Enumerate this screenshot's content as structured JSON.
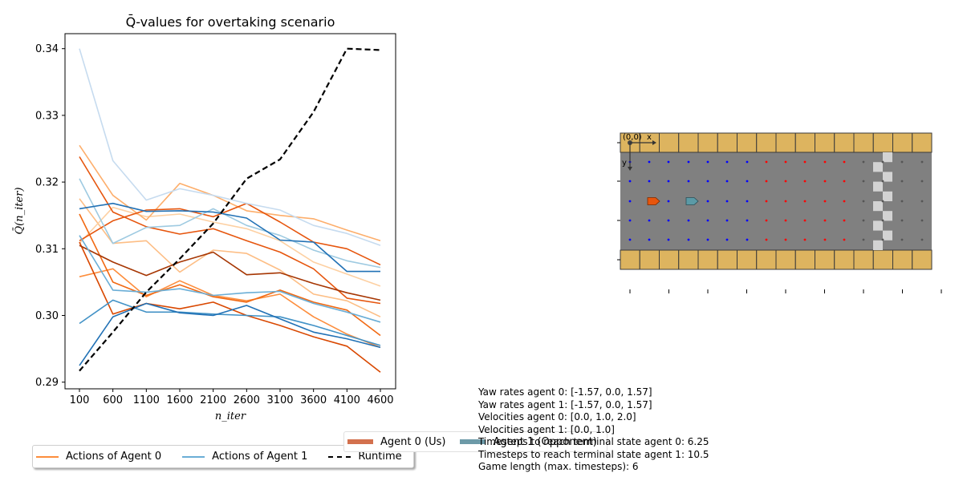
{
  "chart_data": [
    {
      "type": "line",
      "title": "Q̄-values for overtaking scenario",
      "xlabel": "n_iter",
      "ylabel": "Q̄(n_iter)",
      "x": [
        100,
        600,
        1100,
        1600,
        2100,
        2600,
        3100,
        3600,
        4100,
        4600
      ],
      "ylim": [
        0.289,
        0.3425
      ],
      "yticks": [
        0.29,
        0.3,
        0.31,
        0.32,
        0.33,
        0.34
      ],
      "grid": false,
      "series": [
        {
          "group": "agent0",
          "color": "#fdbe85",
          "values": [
            0.3175,
            0.3108,
            0.3112,
            0.3065,
            0.3098,
            0.3093,
            0.3068,
            0.3032,
            0.3022,
            0.2998
          ]
        },
        {
          "group": "agent0",
          "color": "#fdd0a2",
          "values": [
            0.3108,
            0.3162,
            0.3148,
            0.3152,
            0.314,
            0.313,
            0.3112,
            0.308,
            0.3062,
            0.3044
          ]
        },
        {
          "group": "agent0",
          "color": "#fdae6b",
          "values": [
            0.3255,
            0.318,
            0.3143,
            0.3198,
            0.318,
            0.3157,
            0.315,
            0.3145,
            0.3128,
            0.3112
          ]
        },
        {
          "group": "agent0",
          "color": "#fd8d3c",
          "values": [
            0.3058,
            0.307,
            0.3028,
            0.3052,
            0.303,
            0.3022,
            0.3032,
            0.2998,
            0.2972,
            0.2952
          ]
        },
        {
          "group": "agent0",
          "color": "#f16913",
          "values": [
            0.3152,
            0.305,
            0.303,
            0.3046,
            0.3028,
            0.302,
            0.3038,
            0.302,
            0.3008,
            0.297
          ]
        },
        {
          "group": "agent0",
          "color": "#e6550d",
          "values": [
            0.3238,
            0.3155,
            0.3133,
            0.3122,
            0.313,
            0.3112,
            0.3095,
            0.307,
            0.3026,
            0.3018
          ]
        },
        {
          "group": "agent0",
          "color": "#d94801",
          "values": [
            0.311,
            0.3002,
            0.3018,
            0.301,
            0.302,
            0.3,
            0.2985,
            0.2968,
            0.2954,
            0.2915
          ]
        },
        {
          "group": "agent0",
          "color": "#e6550d",
          "values": [
            0.3112,
            0.3142,
            0.3158,
            0.316,
            0.3148,
            0.3168,
            0.314,
            0.311,
            0.31,
            0.3076
          ]
        },
        {
          "group": "agent0",
          "color": "#a63603",
          "values": [
            0.3105,
            0.308,
            0.306,
            0.308,
            0.3095,
            0.3061,
            0.3064,
            0.3048,
            0.3034,
            0.3023
          ]
        },
        {
          "group": "agent1",
          "color": "#c6dbef",
          "values": [
            0.34,
            0.3232,
            0.3173,
            0.319,
            0.318,
            0.3168,
            0.3158,
            0.3135,
            0.3123,
            0.3105
          ]
        },
        {
          "group": "agent1",
          "color": "#9ecae1",
          "values": [
            0.3205,
            0.3108,
            0.3132,
            0.3135,
            0.316,
            0.3135,
            0.312,
            0.3098,
            0.3082,
            0.3072
          ]
        },
        {
          "group": "agent1",
          "color": "#6baed6",
          "values": [
            0.312,
            0.3038,
            0.3035,
            0.304,
            0.303,
            0.3034,
            0.3036,
            0.3018,
            0.3005,
            0.299
          ]
        },
        {
          "group": "agent1",
          "color": "#4292c6",
          "values": [
            0.2988,
            0.3023,
            0.3005,
            0.3005,
            0.3002,
            0.3,
            0.2998,
            0.2985,
            0.297,
            0.2955
          ]
        },
        {
          "group": "agent1",
          "color": "#2171b5",
          "values": [
            0.316,
            0.3168,
            0.3156,
            0.3157,
            0.3155,
            0.3146,
            0.3113,
            0.311,
            0.3066,
            0.3066
          ]
        },
        {
          "group": "agent1",
          "color": "#2171b5",
          "values": [
            0.2925,
            0.2998,
            0.3018,
            0.3004,
            0.3,
            0.3015,
            0.2995,
            0.2975,
            0.2965,
            0.2952
          ]
        },
        {
          "group": "runtime",
          "color": "#000000",
          "dashed": true,
          "values": [
            0.2917,
            0.2975,
            0.3035,
            0.3085,
            0.3138,
            0.3205,
            0.3234,
            0.3305,
            0.34,
            0.3398
          ]
        }
      ],
      "legend": {
        "placement": "below",
        "entries": [
          {
            "label": "Actions of Agent 0",
            "color": "#fd8d3c",
            "style": "solid"
          },
          {
            "label": "Actions of Agent 1",
            "color": "#6baed6",
            "style": "solid"
          },
          {
            "label": "Runtime",
            "color": "#000000",
            "style": "dashed"
          }
        ]
      }
    }
  ],
  "scene": {
    "origin_label": "(0,0)",
    "x_axis_label": "x",
    "y_axis_label": "y",
    "road_color": "#808080",
    "curb_color": "#ddb45f",
    "finish_color": "#d3d3d3",
    "agent0_color": "#e6550d",
    "agent1_color": "#5b9aa6",
    "dot_colors": {
      "near": "#0000ff",
      "mid": "#ff0000",
      "far": "#555555"
    },
    "legend": [
      {
        "label": "Agent 0 (Us)",
        "color": "#d3714e"
      },
      {
        "label": "Agent 1 (Opponent)",
        "color": "#6d9aa8"
      }
    ]
  },
  "info_lines": [
    "Yaw rates agent 0: [-1.57, 0.0, 1.57]",
    "Yaw rates agent 1: [-1.57, 0.0, 1.57]",
    "Velocities agent 0: [0.0, 1.0, 2.0]",
    "Velocities agent 1: [0.0, 1.0]",
    "Timesteps to reach terminal state agent 0: 6.25",
    "Timesteps to reach terminal state agent 1: 10.5",
    "Game length (max. timesteps): 6"
  ]
}
